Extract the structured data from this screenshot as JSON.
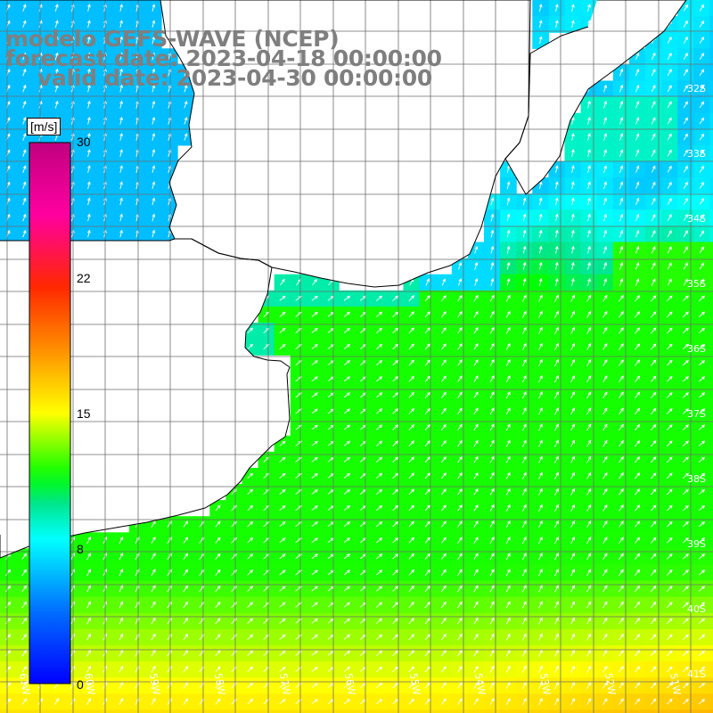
{
  "title": {
    "line1": "modelo GEFS-WAVE (NCEP)",
    "line2": "forecast date: 2023-04-18 00:00:00",
    "line3": "valid date: 2023-04-30 00:00:00"
  },
  "colorbar": {
    "unit": "[m/s]",
    "min": 0,
    "max": 30,
    "labels": [
      "30",
      "22",
      "15",
      "8",
      "0"
    ],
    "label_values": [
      30,
      22,
      15,
      8,
      0
    ],
    "colors": [
      "#0000ff",
      "#00c8ff",
      "#00ffff",
      "#00ff00",
      "#ffff00",
      "#ff8000",
      "#ff0000",
      "#ff00ff",
      "#c0007f"
    ]
  },
  "map": {
    "lon_labels": [
      "61W",
      "60W",
      "59W",
      "58W",
      "57W",
      "56W",
      "55W",
      "54W",
      "53W",
      "52W",
      "51W"
    ],
    "lat_labels": [
      "32S",
      "33S",
      "34S",
      "35S",
      "36S",
      "37S",
      "38S",
      "39S",
      "40S",
      "41S"
    ],
    "lon_range": [
      -61.2,
      -50.1
    ],
    "lat_range": [
      -41.25,
      -30.5
    ],
    "ocean_speed_range_ms": [
      7,
      16
    ],
    "wind_direction": "toward northeast",
    "grid": true,
    "land_color": "#ffffff",
    "coast_color": "#000000"
  }
}
